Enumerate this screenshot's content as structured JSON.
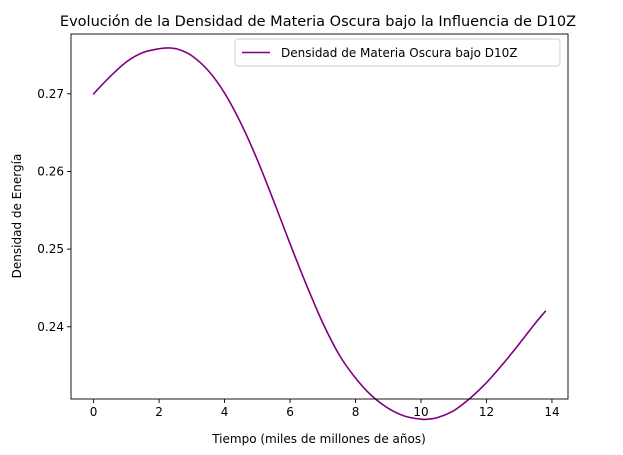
{
  "chart_data": {
    "type": "line",
    "title": "Evolución de la Densidad de Materia Oscura bajo la Influencia de D10Z",
    "xlabel": "Tiempo (miles de millones de años)",
    "ylabel": "Densidad de Energía",
    "xlim": [
      -0.69,
      14.49
    ],
    "ylim": [
      0.2307,
      0.2777
    ],
    "x_ticks": [
      0,
      2,
      4,
      6,
      8,
      10,
      12,
      14
    ],
    "y_ticks": [
      0.24,
      0.25,
      0.26,
      0.27
    ],
    "grid": false,
    "legend_position": "top-right",
    "series": [
      {
        "name": "Densidad de Materia Oscura bajo D10Z",
        "color": "#800080",
        "x": [
          0,
          0.5,
          1,
          1.5,
          2,
          2.3,
          2.6,
          3,
          3.5,
          4,
          4.5,
          5,
          5.5,
          6,
          6.5,
          7,
          7.5,
          8,
          8.5,
          9,
          9.5,
          10,
          10.2,
          10.5,
          11,
          11.5,
          12,
          12.5,
          13,
          13.5,
          13.8
        ],
        "values": [
          0.27,
          0.2722,
          0.2741,
          0.2753,
          0.2758,
          0.2759,
          0.2757,
          0.2749,
          0.273,
          0.2701,
          0.2662,
          0.2615,
          0.2562,
          0.2507,
          0.2454,
          0.2405,
          0.2364,
          0.2334,
          0.2311,
          0.2295,
          0.2285,
          0.2281,
          0.2281,
          0.2283,
          0.2292,
          0.2308,
          0.2328,
          0.2352,
          0.2378,
          0.2405,
          0.242
        ]
      }
    ]
  }
}
